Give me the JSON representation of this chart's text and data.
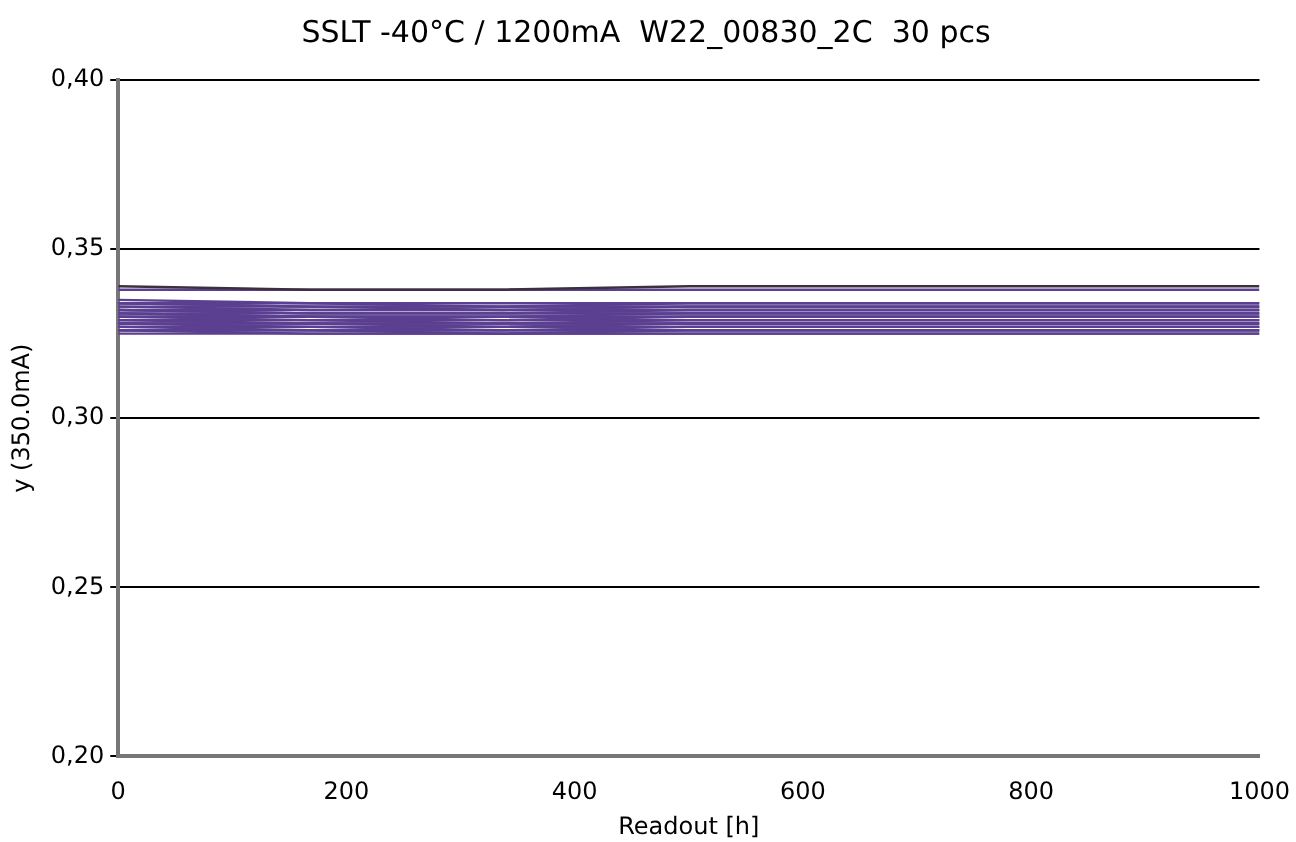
{
  "chart_data": {
    "type": "line",
    "title": "SSLT -40°C / 1200mA  W22_00830_2C  30 pcs",
    "xlabel": "Readout [h]",
    "ylabel": "y (350.0mA)",
    "x": [
      0,
      168,
      336,
      500,
      1000
    ],
    "xlim": [
      0,
      1000
    ],
    "xticks": [
      0,
      200,
      400,
      600,
      800,
      1000
    ],
    "ylim": [
      0.2,
      0.4
    ],
    "yticks": [
      {
        "value": 0.2,
        "label": "0,20"
      },
      {
        "value": 0.25,
        "label": "0,25"
      },
      {
        "value": 0.3,
        "label": "0,30"
      },
      {
        "value": 0.35,
        "label": "0,35"
      },
      {
        "value": 0.4,
        "label": "0,40"
      }
    ],
    "grid": "y",
    "legend": false,
    "marker": "none",
    "line_style": "solid",
    "series": [
      {
        "color": "#3c3040",
        "values": [
          0.339,
          0.338,
          0.338,
          0.339,
          0.339
        ]
      },
      {
        "color": "#5b3f90",
        "values": [
          0.338,
          0.338,
          0.338,
          0.338,
          0.338
        ]
      },
      {
        "color": "#5b3f90",
        "values": [
          0.335,
          0.334,
          0.334,
          0.334,
          0.334
        ]
      },
      {
        "color": "#5b3f90",
        "values": [
          0.334,
          0.334,
          0.333,
          0.334,
          0.334
        ]
      },
      {
        "color": "#5b3f90",
        "values": [
          0.334,
          0.333,
          0.333,
          0.333,
          0.333
        ]
      },
      {
        "color": "#5b3f90",
        "values": [
          0.333,
          0.333,
          0.333,
          0.333,
          0.333
        ]
      },
      {
        "color": "#5b3f90",
        "values": [
          0.333,
          0.332,
          0.332,
          0.333,
          0.333
        ]
      },
      {
        "color": "#5b3f90",
        "values": [
          0.332,
          0.332,
          0.332,
          0.332,
          0.332
        ]
      },
      {
        "color": "#5b3f90",
        "values": [
          0.332,
          0.331,
          0.331,
          0.332,
          0.332
        ]
      },
      {
        "color": "#5b3f90",
        "values": [
          0.331,
          0.331,
          0.331,
          0.331,
          0.331
        ]
      },
      {
        "color": "#5b3f90",
        "values": [
          0.331,
          0.33,
          0.33,
          0.331,
          0.331
        ]
      },
      {
        "color": "#5b3f90",
        "values": [
          0.33,
          0.33,
          0.33,
          0.33,
          0.33
        ]
      },
      {
        "color": "#5b3f90",
        "values": [
          0.33,
          0.329,
          0.329,
          0.33,
          0.33
        ]
      },
      {
        "color": "#5b3f90",
        "values": [
          0.33,
          0.33,
          0.329,
          0.329,
          0.329
        ]
      },
      {
        "color": "#5b3f90",
        "values": [
          0.329,
          0.329,
          0.329,
          0.329,
          0.329
        ]
      },
      {
        "color": "#5b3f90",
        "values": [
          0.329,
          0.328,
          0.328,
          0.329,
          0.329
        ]
      },
      {
        "color": "#5b3f90",
        "values": [
          0.329,
          0.329,
          0.328,
          0.328,
          0.328
        ]
      },
      {
        "color": "#5b3f90",
        "values": [
          0.328,
          0.328,
          0.328,
          0.328,
          0.328
        ]
      },
      {
        "color": "#5b3f90",
        "values": [
          0.328,
          0.327,
          0.327,
          0.328,
          0.328
        ]
      },
      {
        "color": "#5b3f90",
        "values": [
          0.328,
          0.328,
          0.327,
          0.327,
          0.327
        ]
      },
      {
        "color": "#5b3f90",
        "values": [
          0.327,
          0.327,
          0.327,
          0.327,
          0.327
        ]
      },
      {
        "color": "#5b3f90",
        "values": [
          0.327,
          0.326,
          0.326,
          0.327,
          0.327
        ]
      },
      {
        "color": "#5b3f90",
        "values": [
          0.327,
          0.327,
          0.326,
          0.326,
          0.326
        ]
      },
      {
        "color": "#5b3f90",
        "values": [
          0.326,
          0.326,
          0.326,
          0.326,
          0.326
        ]
      },
      {
        "color": "#5b3f90",
        "values": [
          0.326,
          0.325,
          0.325,
          0.326,
          0.326
        ]
      },
      {
        "color": "#5b3f90",
        "values": [
          0.326,
          0.326,
          0.325,
          0.325,
          0.325
        ]
      },
      {
        "color": "#5b3f90",
        "values": [
          0.325,
          0.325,
          0.325,
          0.325,
          0.325
        ]
      },
      {
        "color": "#5b3f90",
        "values": [
          0.332,
          0.331,
          0.331,
          0.331,
          0.331
        ]
      },
      {
        "color": "#5b3f90",
        "values": [
          0.331,
          0.33,
          0.33,
          0.33,
          0.33
        ]
      },
      {
        "color": "#5b3f90",
        "values": [
          0.334,
          0.333,
          0.332,
          0.332,
          0.332
        ]
      }
    ]
  }
}
